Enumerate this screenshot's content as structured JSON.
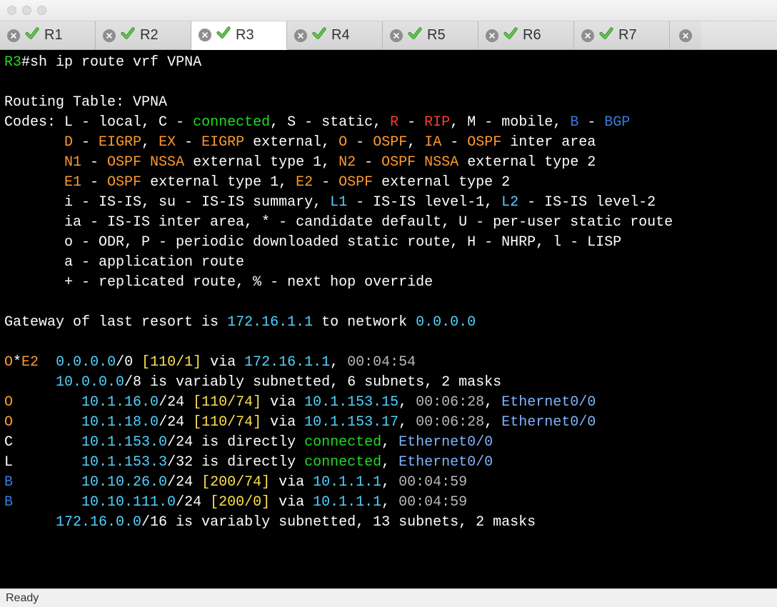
{
  "window": {
    "tabs": [
      {
        "label": "R1",
        "active": false
      },
      {
        "label": "R2",
        "active": false
      },
      {
        "label": "R3",
        "active": true
      },
      {
        "label": "R4",
        "active": false
      },
      {
        "label": "R5",
        "active": false
      },
      {
        "label": "R6",
        "active": false
      },
      {
        "label": "R7",
        "active": false
      }
    ],
    "statusbar": "Ready"
  },
  "colors": {
    "terminal_bg": "#000000",
    "fg_default": "#ffffff",
    "green": "#23d923",
    "red": "#ff3b30",
    "blue": "#3a7ae0",
    "orange": "#ff9a2e",
    "yellow": "#ffe14d",
    "cyan": "#4fd2ff",
    "sky": "#7fb4ff",
    "gray": "#b8b8b8",
    "check_fill": "#63c64d",
    "check_border": "#3a8a2a",
    "tab_inactive": "#d8d8d8",
    "tab_active": "#ffffff"
  },
  "term": {
    "prompt_host": "R3",
    "prompt_hash": "#",
    "command": "sh ip route vrf VPNA",
    "blank": "",
    "table_header": "Routing Table: VPNA",
    "codes_prefix": "Codes: ",
    "codes_l": "L - local, ",
    "codes_c_code": "C",
    "codes_c_dash": " - ",
    "codes_c_word": "connected",
    "codes_c_tail": ", S - static, ",
    "codes_r_code": "R",
    "codes_r_dash": " - ",
    "codes_r_word": "RIP",
    "codes_r_tail": ", M - mobile, ",
    "codes_b_code": "B",
    "codes_b_dash": " - ",
    "codes_b_word": "BGP",
    "indent7": "       ",
    "line_d_code": "D",
    "line_d_dash": " - ",
    "line_d_word": "EIGRP",
    "line_d_sep": ", ",
    "line_ex_code": "EX",
    "line_ex_dash": " - ",
    "line_ex_word": "EIGRP",
    "line_ex_tail": " external, ",
    "line_o_code": "O",
    "line_o_dash": " - ",
    "line_o_word": "OSPF",
    "line_o_sep": ", ",
    "line_ia_code": "IA",
    "line_ia_dash": " - ",
    "line_ia_word": "OSPF",
    "line_ia_tail": " inter area",
    "line_n1_code": "N1",
    "line_n1_dash": " - ",
    "line_n1_word": "OSPF NSSA",
    "line_n1_tail": " external type 1, ",
    "line_n2_code": "N2",
    "line_n2_dash": " - ",
    "line_n2_word": "OSPF NSSA",
    "line_n2_tail": " external type 2",
    "line_e1_code": "E1",
    "line_e1_dash": " - ",
    "line_e1_word": "OSPF",
    "line_e1_tail": " external type 1, ",
    "line_e2_code": "E2",
    "line_e2_dash": " - ",
    "line_e2_word": "OSPF",
    "line_e2_tail": " external type 2",
    "line_isis_a": "i - IS-IS, su - IS-IS summary, ",
    "line_isis_l1c": "L1",
    "line_isis_l1t": " - IS-IS level-1, ",
    "line_isis_l2c": "L2",
    "line_isis_l2t": " - IS-IS level-2",
    "line_ia2": "ia - IS-IS inter area, * - candidate default, ",
    "line_ia2_u": "U",
    "line_ia2_ut": " - per-user static route",
    "line_odr": "o - ODR, P - periodic downloaded static route, H - NHRP, l - LISP",
    "line_app": "a - application route",
    "line_rep": "+ - replicated route, % - next hop override",
    "gw_a": "Gateway of last resort is ",
    "gw_ip": "172.16.1.1",
    "gw_b": " to network ",
    "gw_net": "0.0.0.0",
    "r0_code": "O",
    "r0_star": "*",
    "r0_e2": "E2",
    "r0_sp": "  ",
    "r0_net": "0.0.0.0",
    "r0_mask": "/0 ",
    "r0_metric": "[110/1]",
    "r0_via": " via ",
    "r0_nh": "172.16.1.1",
    "r0_tail": ", ",
    "r0_time": "00:04:54",
    "sum1_pad": "      ",
    "sum1_net": "10.0.0.0",
    "sum1_tail": "/8 is variably subnetted, 6 subnets, 2 masks",
    "r1_code": "O",
    "r1_pad": "        ",
    "r1_net": "10.1.16.0",
    "r1_mask": "/24 ",
    "r1_metric": "[110/74]",
    "r1_via": " via ",
    "r1_nh": "10.1.153.15",
    "r1_c": ", ",
    "r1_time": "00:06:28",
    "r1_c2": ", ",
    "r1_if": "Ethernet0/0",
    "r2_code": "O",
    "r2_net": "10.1.18.0",
    "r2_nh": "10.1.153.17",
    "r3_code": "C",
    "r3_net": "10.1.153.0",
    "r3_mid": "/24 is directly ",
    "r3_conn": "connected",
    "r3_c": ", ",
    "r3_if": "Ethernet0/0",
    "r4_code": "L",
    "r4_net": "10.1.153.3",
    "r4_mid": "/32 is directly ",
    "r5_code": "B",
    "r5_net": "10.10.26.0",
    "r5_mask": "/24 ",
    "r5_metric": "[200/74]",
    "r5_via": " via ",
    "r5_nh": "10.1.1.1",
    "r5_c": ", ",
    "r5_time": "00:04:59",
    "r6_code": "B",
    "r6_net": "10.10.111.0",
    "r6_metric": "[200/0]",
    "sum2_net": "172.16.0.0",
    "sum2_tail": "/16 is variably subnetted, 13 subnets, 2 masks"
  }
}
